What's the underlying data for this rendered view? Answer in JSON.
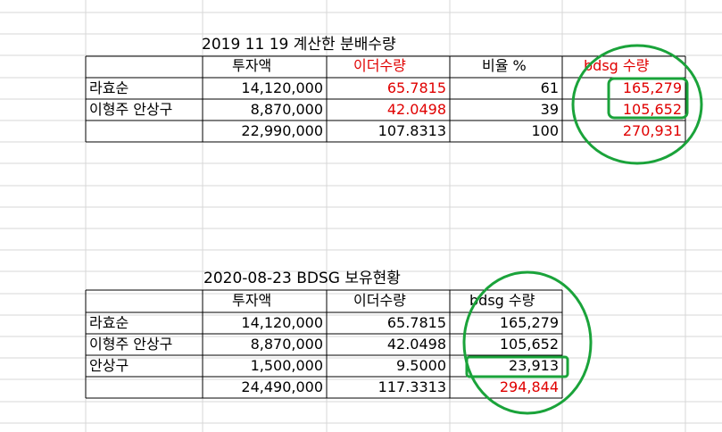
{
  "colors": {
    "accent_red": "#e00000",
    "annotation_green": "#1aa33a",
    "gridline": "#d7d7d7"
  },
  "table1": {
    "title": "2019  11  19 계산한 분배수량",
    "headers": [
      "",
      "투자액",
      "이더수량",
      "비율 %",
      "bdsg 수량"
    ],
    "rows": [
      [
        "라효순",
        "14,120,000",
        "65.7815",
        "61",
        "165,279"
      ],
      [
        "이형주 안상구",
        "8,870,000",
        "42.0498",
        "39",
        "105,652"
      ],
      [
        "",
        "22,990,000",
        "107.8313",
        "100",
        "270,931"
      ]
    ]
  },
  "table2": {
    "title": "2020-08-23 BDSG 보유현황",
    "headers": [
      "",
      "투자액",
      "이더수량",
      "bdsg 수량"
    ],
    "rows": [
      [
        "라효순",
        "14,120,000",
        "65.7815",
        "165,279"
      ],
      [
        "이형주 안상구",
        "8,870,000",
        "42.0498",
        "105,652"
      ],
      [
        "안상구",
        "1,500,000",
        "9.5000",
        "23,913"
      ],
      [
        "",
        "24,490,000",
        "117.3313",
        "294,844"
      ]
    ]
  }
}
